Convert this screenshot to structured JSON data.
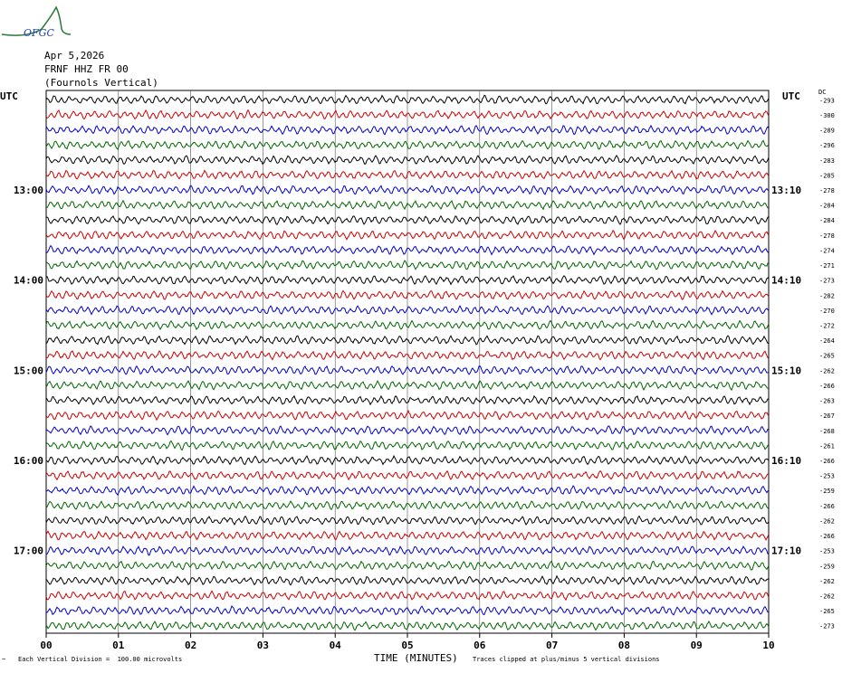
{
  "logo_text": "OFGC",
  "header": {
    "date": "Apr 5,2026",
    "station": "FRNF HHZ FR 00",
    "location": "(Fournols Vertical)"
  },
  "left_utc": "UTC",
  "right_utc": "UTC",
  "dc_label": "DC",
  "footer": {
    "division": "Each Vertical Division =  100.00 microvolts",
    "clipped": "Traces clipped at plus/minus 5 vertical divisions",
    "corner_mark": "~"
  },
  "colors": {
    "trace": [
      "#000000",
      "#cc0000",
      "#0000cc",
      "#006600"
    ],
    "grid": "#555555",
    "text": "#000000",
    "logo": "#2a7a3a"
  },
  "chart_data": {
    "type": "line",
    "title": "",
    "xlabel": "TIME (MINUTES)",
    "xticks": [
      "00",
      "01",
      "02",
      "03",
      "04",
      "05",
      "06",
      "07",
      "08",
      "09",
      "10"
    ],
    "xlim": [
      0,
      10
    ],
    "grid": true,
    "left_hour_labels": [
      {
        "row": 6,
        "text": "13:00"
      },
      {
        "row": 12,
        "text": "14:00"
      },
      {
        "row": 18,
        "text": "15:00"
      },
      {
        "row": 24,
        "text": "16:00"
      },
      {
        "row": 30,
        "text": "17:00"
      }
    ],
    "right_hour_labels": [
      {
        "row": 6,
        "text": "13:10"
      },
      {
        "row": 12,
        "text": "14:10"
      },
      {
        "row": 18,
        "text": "15:10"
      },
      {
        "row": 24,
        "text": "16:10"
      },
      {
        "row": 30,
        "text": "17:10"
      }
    ],
    "dc_offsets": [
      -293,
      -300,
      -289,
      -296,
      -283,
      -285,
      -278,
      -284,
      -284,
      -278,
      -274,
      -271,
      -273,
      -282,
      -270,
      -272,
      -264,
      -265,
      -262,
      -266,
      -263,
      -267,
      -268,
      -261,
      -266,
      -253,
      -259,
      -266,
      -262,
      -266,
      -253,
      -259,
      -262,
      -262,
      -265,
      -273
    ]
  }
}
